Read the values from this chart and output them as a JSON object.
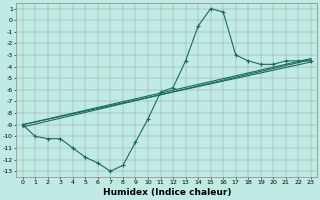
{
  "xlabel": "Humidex (Indice chaleur)",
  "xlim": [
    -0.5,
    23.5
  ],
  "ylim": [
    -13.5,
    1.5
  ],
  "bg_color": "#c0eae4",
  "line_color": "#1a6b5e",
  "yticks": [
    1,
    0,
    -1,
    -2,
    -3,
    -4,
    -5,
    -6,
    -7,
    -8,
    -9,
    -10,
    -11,
    -12,
    -13
  ],
  "xticks": [
    0,
    1,
    2,
    3,
    4,
    5,
    6,
    7,
    8,
    9,
    10,
    11,
    12,
    13,
    14,
    15,
    16,
    17,
    18,
    19,
    20,
    21,
    22,
    23
  ],
  "wiggly": {
    "x": [
      0,
      1,
      2,
      3,
      4,
      5,
      6,
      7,
      8,
      9,
      10,
      11,
      12,
      13,
      14,
      15,
      16,
      17,
      18,
      19,
      20,
      21,
      22,
      23
    ],
    "y": [
      -9.0,
      -10.0,
      -10.2,
      -10.2,
      -11.0,
      -11.8,
      -12.3,
      -13.0,
      -12.5,
      -10.5,
      -8.5,
      -6.2,
      -5.8,
      -3.5,
      -0.5,
      1.0,
      0.7,
      -3.0,
      -3.5,
      -3.8,
      -3.8,
      -3.5,
      -3.5,
      -3.5
    ]
  },
  "line1": {
    "x": [
      0,
      23
    ],
    "y": [
      -9.0,
      -3.3
    ]
  },
  "line2": {
    "x": [
      0,
      23
    ],
    "y": [
      -9.0,
      -3.6
    ]
  },
  "line3": {
    "x": [
      0,
      23
    ],
    "y": [
      -9.2,
      -3.4
    ]
  }
}
